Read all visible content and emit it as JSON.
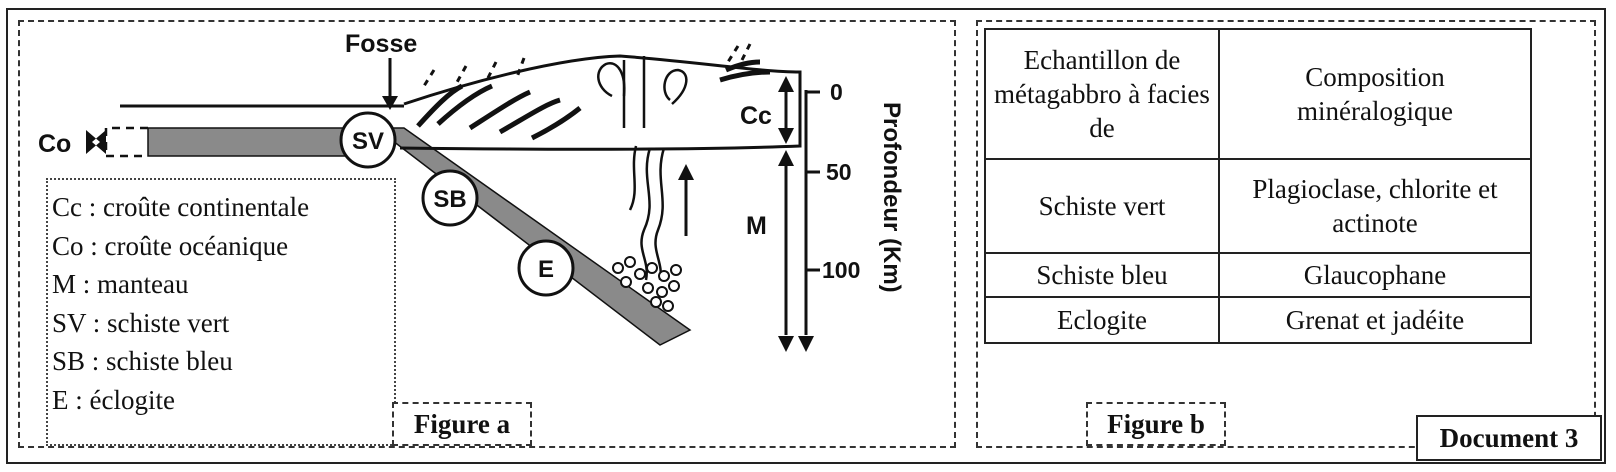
{
  "figure_a": {
    "caption": "Figure a",
    "labels": {
      "fosse": "Fosse",
      "co": "Co",
      "cc": "Cc",
      "m": "M",
      "sv": "SV",
      "sb": "SB",
      "e": "E",
      "depth_axis": "Profondeur (Km)"
    },
    "depth_ticks": [
      "0",
      "50",
      "100"
    ],
    "legend": [
      "Cc : croûte continentale",
      "Co : croûte océanique",
      "M : manteau",
      "SV : schiste vert",
      "SB : schiste bleu",
      "E : éclogite"
    ]
  },
  "figure_b": {
    "caption": "Figure b",
    "table": {
      "headers": [
        "Echantillon de métagabbro à facies de",
        "Composition minéralogique"
      ],
      "rows": [
        [
          "Schiste vert",
          "Plagioclase, chlorite et actinote"
        ],
        [
          "Schiste bleu",
          "Glaucophane"
        ],
        [
          "Eclogite",
          "Grenat et jadéite"
        ]
      ]
    }
  },
  "document_label": "Document 3",
  "colors": {
    "oceanic_crust": "#8a8a8a",
    "ink": "#111111"
  }
}
